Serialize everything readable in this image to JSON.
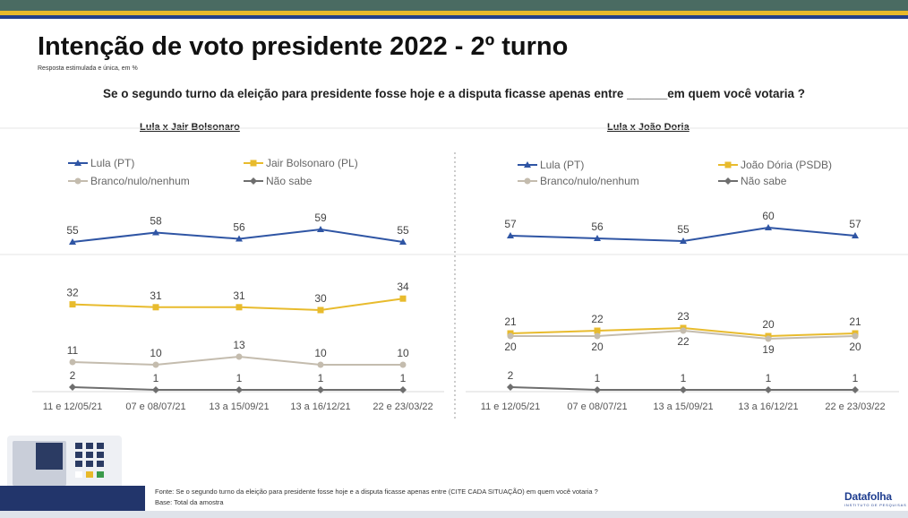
{
  "header": {
    "title": "Intenção de voto presidente 2022 - 2º turno",
    "subtitle": "Resposta estimulada e única, em %",
    "question": "Se o segundo turno da eleição para presidente fosse hoje e a disputa ficasse apenas entre ______em quem você votaria ?"
  },
  "footer": {
    "source": "Fonte: Se o segundo turno da eleição para presidente fosse hoje e a disputa ficasse apenas entre (CITE CADA SITUAÇÃO) em quem você votaria ?",
    "base": "Base: Total da amostra",
    "brand": "Datafolha",
    "brand_sub": "INSTITUTO DE PESQUISAS"
  },
  "colors": {
    "lula": "#2f55a4",
    "opponent": "#e8bb2d",
    "branco": "#c4bcae",
    "nao_sabe": "#6e6e6e",
    "top_bar": "#4a6b62"
  },
  "icons": [
    "voting-machine-icon"
  ],
  "chart_data": [
    {
      "type": "line",
      "title": "Lula x Jair Bolsonaro",
      "categories": [
        "11 e 12/05/21",
        "07 e 08/07/21",
        "13 a 15/09/21",
        "13 a 16/12/21",
        "22 e 23/03/22"
      ],
      "legend_position": "top",
      "series": [
        {
          "name": "Lula (PT)",
          "values": [
            55,
            58,
            56,
            59,
            55
          ],
          "color": "#2f55a4",
          "marker": "triangle"
        },
        {
          "name": "Jair Bolsonaro (PL)",
          "values": [
            32,
            31,
            31,
            30,
            34
          ],
          "color": "#e8bb2d",
          "marker": "square"
        },
        {
          "name": "Branco/nulo/nenhum",
          "values": [
            11,
            10,
            13,
            10,
            10
          ],
          "color": "#c4bcae",
          "marker": "circle"
        },
        {
          "name": "Não sabe",
          "values": [
            2,
            1,
            1,
            1,
            1
          ],
          "color": "#6e6e6e",
          "marker": "diamond"
        }
      ]
    },
    {
      "type": "line",
      "title": "Lula x João Doria",
      "categories": [
        "11 e 12/05/21",
        "07 e 08/07/21",
        "13 a 15/09/21",
        "13 a 16/12/21",
        "22 e 23/03/22"
      ],
      "legend_position": "top",
      "series": [
        {
          "name": "Lula (PT)",
          "values": [
            57,
            56,
            55,
            60,
            57
          ],
          "color": "#2f55a4",
          "marker": "triangle"
        },
        {
          "name": "João Dória (PSDB)",
          "values": [
            21,
            22,
            23,
            20,
            21
          ],
          "color": "#e8bb2d",
          "marker": "square"
        },
        {
          "name": "Branco/nulo/nenhum",
          "values": [
            20,
            20,
            22,
            19,
            20
          ],
          "color": "#c4bcae",
          "marker": "circle"
        },
        {
          "name": "Não sabe",
          "values": [
            2,
            1,
            1,
            1,
            1
          ],
          "color": "#6e6e6e",
          "marker": "diamond"
        }
      ]
    }
  ]
}
